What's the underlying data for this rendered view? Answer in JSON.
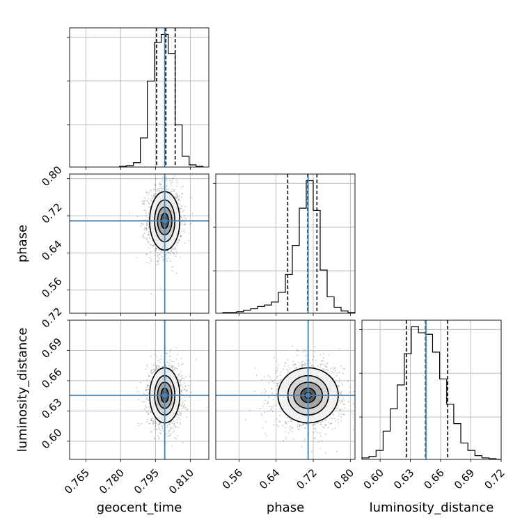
{
  "chart_data": {
    "type": "corner",
    "parameters": [
      "geocent_time",
      "phase",
      "luminosity_distance"
    ],
    "truth_color": "#4682b4",
    "grid": true,
    "panels": [
      {
        "kind": "histogram",
        "param": "geocent_time",
        "xlim": [
          0.758,
          0.818
        ],
        "xticks": [
          0.765,
          0.78,
          0.795,
          0.81
        ],
        "bin_edges": [
          0.7795,
          0.7825,
          0.7855,
          0.7885,
          0.7915,
          0.7945,
          0.7975,
          0.8005,
          0.8035,
          0.8065,
          0.8095,
          0.8125,
          0.8155
        ],
        "counts": [
          1,
          2,
          6,
          40,
          118,
          171,
          182,
          156,
          58,
          15,
          3,
          1
        ],
        "quantiles": [
          0.7955,
          0.7995,
          0.8035
        ],
        "truth": 0.799
      },
      {
        "kind": "histogram",
        "param": "phase",
        "xlim": [
          0.51,
          0.81
        ],
        "xticks": [
          0.56,
          0.64,
          0.72,
          0.8
        ],
        "bin_edges": [
          0.525,
          0.54,
          0.555,
          0.57,
          0.585,
          0.6,
          0.615,
          0.63,
          0.645,
          0.66,
          0.675,
          0.69,
          0.705,
          0.72,
          0.735,
          0.75,
          0.765,
          0.78,
          0.795,
          0.81
        ],
        "counts": [
          1,
          1,
          2,
          4,
          6,
          9,
          11,
          15,
          28,
          52,
          91,
          141,
          178,
          138,
          58,
          22,
          8,
          3,
          1
        ],
        "quantiles": [
          0.665,
          0.708,
          0.728
        ],
        "truth": 0.709
      },
      {
        "kind": "histogram",
        "param": "luminosity_distance",
        "xlim": [
          0.582,
          0.72
        ],
        "xticks": [
          0.6,
          0.63,
          0.66,
          0.69,
          0.72
        ],
        "bin_edges": [
          0.582,
          0.589,
          0.596,
          0.603,
          0.61,
          0.617,
          0.624,
          0.631,
          0.638,
          0.645,
          0.652,
          0.659,
          0.666,
          0.673,
          0.68,
          0.687,
          0.694,
          0.701,
          0.708,
          0.715,
          0.72
        ],
        "counts": [
          2,
          4,
          12,
          38,
          68,
          100,
          142,
          178,
          170,
          168,
          144,
          108,
          74,
          48,
          22,
          12,
          5,
          2,
          1,
          0
        ],
        "quantiles": [
          0.626,
          0.645,
          0.667
        ],
        "truth": 0.6455
      },
      {
        "kind": "2d",
        "x": "geocent_time",
        "y": "phase",
        "xlim": [
          0.758,
          0.818
        ],
        "ylim": [
          0.51,
          0.81
        ],
        "yticks": [
          0.56,
          0.64,
          0.72,
          0.8
        ],
        "center": [
          0.799,
          0.709
        ],
        "sigma": [
          0.003,
          0.03
        ],
        "truth": [
          0.799,
          0.709
        ]
      },
      {
        "kind": "2d",
        "x": "geocent_time",
        "y": "luminosity_distance",
        "xlim": [
          0.758,
          0.818
        ],
        "ylim": [
          0.582,
          0.72
        ],
        "yticks": [
          0.6,
          0.63,
          0.66,
          0.69,
          0.72
        ],
        "center": [
          0.799,
          0.6455
        ],
        "sigma": [
          0.003,
          0.013
        ],
        "truth": [
          0.799,
          0.6455
        ]
      },
      {
        "kind": "2d",
        "x": "phase",
        "y": "luminosity_distance",
        "xlim": [
          0.51,
          0.81
        ],
        "ylim": [
          0.582,
          0.72
        ],
        "center": [
          0.709,
          0.6455
        ],
        "sigma": [
          0.03,
          0.013
        ],
        "truth": [
          0.709,
          0.6455
        ]
      }
    ],
    "tick_labels": {
      "geocent_time": [
        "0.765",
        "0.780",
        "0.795",
        "0.810"
      ],
      "phase": [
        "0.56",
        "0.64",
        "0.72",
        "0.80"
      ],
      "luminosity_distance": [
        "0.60",
        "0.63",
        "0.66",
        "0.69",
        "0.72"
      ]
    },
    "axis_labels": {
      "x": [
        "geocent_time",
        "phase",
        "luminosity_distance"
      ],
      "y": [
        "phase",
        "luminosity_distance"
      ]
    }
  }
}
